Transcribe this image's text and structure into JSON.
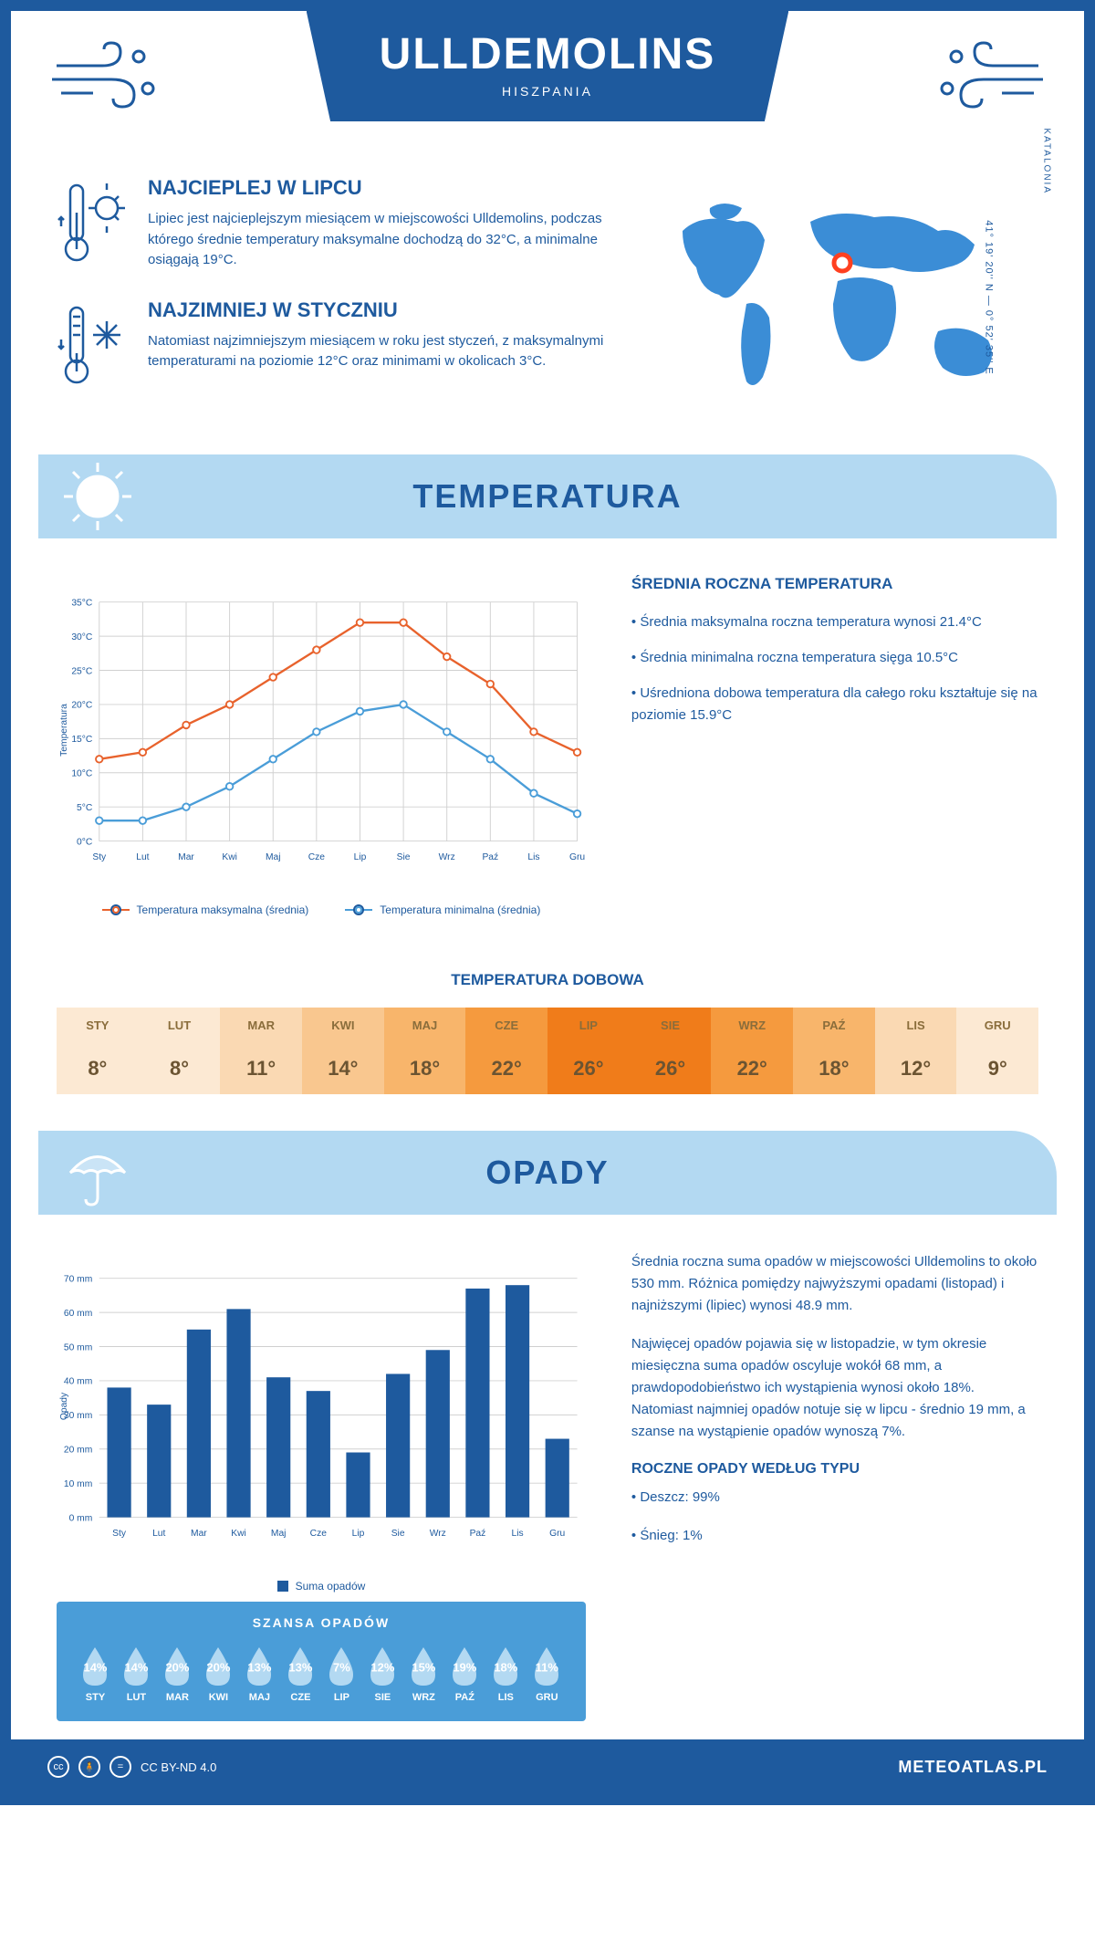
{
  "header": {
    "title": "ULLDEMOLINS",
    "subtitle": "HISZPANIA"
  },
  "coords": "41° 19' 20'' N — 0° 52' 35'' E",
  "region": "KATALONIA",
  "warmest": {
    "title": "NAJCIEPLEJ W LIPCU",
    "text": "Lipiec jest najcieplejszym miesiącem w miejscowości Ulldemolins, podczas którego średnie temperatury maksymalne dochodzą do 32°C, a minimalne osiągają 19°C."
  },
  "coldest": {
    "title": "NAJZIMNIEJ W STYCZNIU",
    "text": "Natomiast najzimniejszym miesiącem w roku jest styczeń, z maksymalnymi temperaturami na poziomie 12°C oraz minimami w okolicach 3°C."
  },
  "temperature_section": {
    "heading": "TEMPERATURA",
    "info_title": "ŚREDNIA ROCZNA TEMPERATURA",
    "bullets": [
      "• Średnia maksymalna roczna temperatura wynosi 21.4°C",
      "• Średnia minimalna roczna temperatura sięga 10.5°C",
      "• Uśredniona dobowa temperatura dla całego roku kształtuje się na poziomie 15.9°C"
    ],
    "chart": {
      "months": [
        "Sty",
        "Lut",
        "Mar",
        "Kwi",
        "Maj",
        "Cze",
        "Lip",
        "Sie",
        "Wrz",
        "Paź",
        "Lis",
        "Gru"
      ],
      "max_values": [
        12,
        13,
        17,
        20,
        24,
        28,
        32,
        32,
        27,
        23,
        16,
        13
      ],
      "min_values": [
        3,
        3,
        5,
        8,
        12,
        16,
        19,
        20,
        16,
        12,
        7,
        4
      ],
      "max_color": "#e8622c",
      "min_color": "#4a9dd8",
      "ylim": [
        0,
        35
      ],
      "ytick_step": 5,
      "ylabel": "Temperatura",
      "grid_color": "#d0d0d0",
      "legend_max": "Temperatura maksymalna (średnia)",
      "legend_min": "Temperatura minimalna (średnia)"
    },
    "daily_title": "TEMPERATURA DOBOWA",
    "daily": {
      "months": [
        "STY",
        "LUT",
        "MAR",
        "KWI",
        "MAJ",
        "CZE",
        "LIP",
        "SIE",
        "WRZ",
        "PAŹ",
        "LIS",
        "GRU"
      ],
      "values": [
        "8°",
        "8°",
        "11°",
        "14°",
        "18°",
        "22°",
        "26°",
        "26°",
        "22°",
        "18°",
        "12°",
        "9°"
      ],
      "colors": [
        "#fce9d3",
        "#fce9d3",
        "#fad9b3",
        "#f9c78f",
        "#f8b56b",
        "#f59a3e",
        "#f07c1a",
        "#f07c1a",
        "#f59a3e",
        "#f8b56b",
        "#fad9b3",
        "#fce9d3"
      ]
    }
  },
  "precipitation_section": {
    "heading": "OPADY",
    "text1": "Średnia roczna suma opadów w miejscowości Ulldemolins to około 530 mm. Różnica pomiędzy najwyższymi opadami (listopad) i najniższymi (lipiec) wynosi 48.9 mm.",
    "text2": "Najwięcej opadów pojawia się w listopadzie, w tym okresie miesięczna suma opadów oscyluje wokół 68 mm, a prawdopodobieństwo ich wystąpienia wynosi około 18%. Natomiast najmniej opadów notuje się w lipcu - średnio 19 mm, a szanse na wystąpienie opadów wynoszą 7%.",
    "type_title": "ROCZNE OPADY WEDŁUG TYPU",
    "type_rain": "• Deszcz: 99%",
    "type_snow": "• Śnieg: 1%",
    "chart": {
      "months": [
        "Sty",
        "Lut",
        "Mar",
        "Kwi",
        "Maj",
        "Cze",
        "Lip",
        "Sie",
        "Wrz",
        "Paź",
        "Lis",
        "Gru"
      ],
      "values": [
        38,
        33,
        55,
        61,
        41,
        37,
        19,
        42,
        49,
        67,
        68,
        23
      ],
      "bar_color": "#1e5a9e",
      "ylim": [
        0,
        70
      ],
      "ytick_step": 10,
      "ylabel": "Opady",
      "grid_color": "#d0d0d0",
      "legend": "Suma opadów"
    },
    "chance": {
      "title": "SZANSA OPADÓW",
      "months": [
        "STY",
        "LUT",
        "MAR",
        "KWI",
        "MAJ",
        "CZE",
        "LIP",
        "SIE",
        "WRZ",
        "PAŹ",
        "LIS",
        "GRU"
      ],
      "values": [
        "14%",
        "14%",
        "20%",
        "20%",
        "13%",
        "13%",
        "7%",
        "12%",
        "15%",
        "19%",
        "18%",
        "11%"
      ],
      "drop_color": "#b3d9f2"
    }
  },
  "footer": {
    "license": "CC BY-ND 4.0",
    "site": "METEOATLAS.PL"
  }
}
